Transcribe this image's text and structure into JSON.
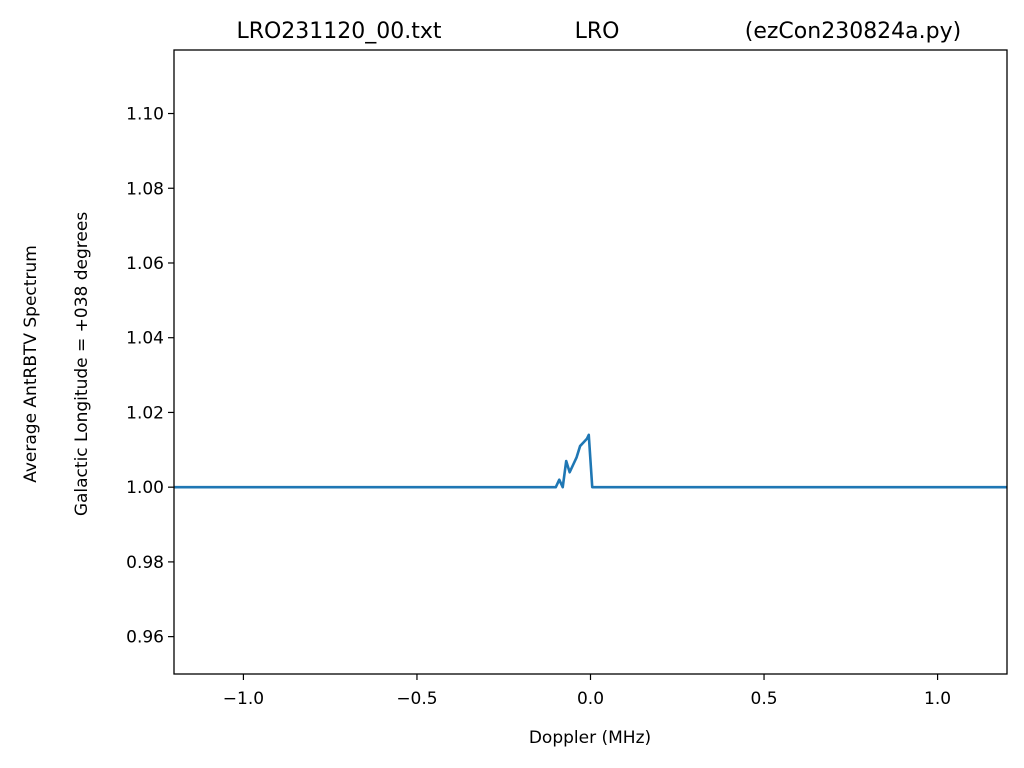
{
  "chart_data": {
    "type": "line",
    "title_parts": [
      "LRO231120_00.txt",
      "LRO",
      "(ezCon230824a.py)"
    ],
    "xlabel": "Doppler (MHz)",
    "ylabel_lines": [
      "Average AntRBTV Spectrum",
      "Galactic Longitude = +038 degrees"
    ],
    "xlim": [
      -1.2,
      1.2
    ],
    "ylim": [
      0.95,
      1.117
    ],
    "xticks": [
      -1.0,
      -0.5,
      0.0,
      0.5,
      1.0
    ],
    "xtick_labels": [
      "−1.0",
      "−0.5",
      "0.0",
      "0.5",
      "1.0"
    ],
    "yticks": [
      0.96,
      0.98,
      1.0,
      1.02,
      1.04,
      1.06,
      1.08,
      1.1
    ],
    "ytick_labels": [
      "0.96",
      "0.98",
      "1.00",
      "1.02",
      "1.04",
      "1.06",
      "1.08",
      "1.10"
    ],
    "grid": false,
    "series": [
      {
        "color": "#1f77b4",
        "x": [
          -1.2,
          -0.1,
          -0.09,
          -0.08,
          -0.07,
          -0.06,
          -0.05,
          -0.04,
          -0.03,
          -0.02,
          -0.01,
          -0.005,
          0.005,
          1.2
        ],
        "y": [
          1.0,
          1.0,
          1.002,
          1.0,
          1.007,
          1.004,
          1.006,
          1.008,
          1.011,
          1.012,
          1.013,
          1.014,
          1.0,
          1.0
        ]
      }
    ]
  }
}
